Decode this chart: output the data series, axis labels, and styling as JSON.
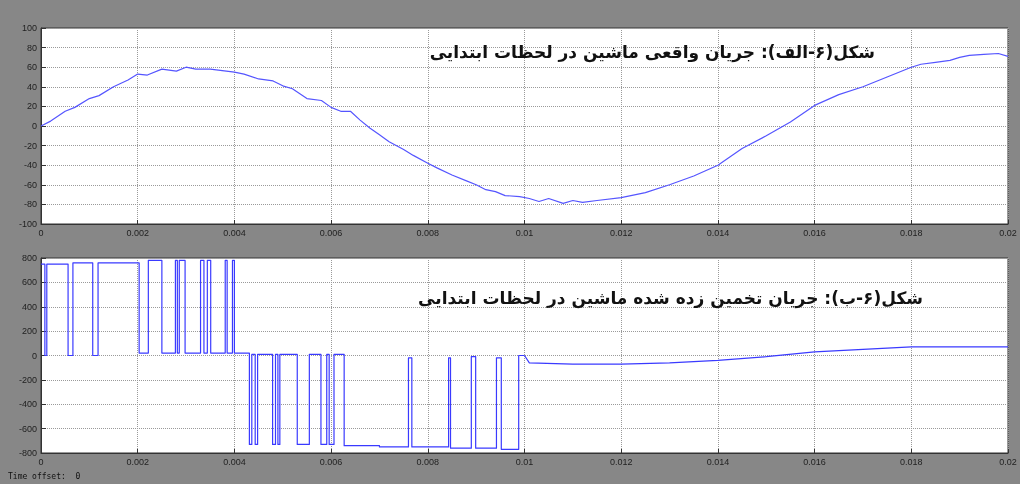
{
  "chart_data": [
    {
      "type": "line",
      "title": "شکل(۶-الف): جریان واقعی ماشین در لحظات ابتدایی",
      "color": "#5555ff",
      "x": [
        0,
        0.0002,
        0.0005,
        0.0007,
        0.001,
        0.0012,
        0.0015,
        0.0018,
        0.002,
        0.0022,
        0.0025,
        0.0028,
        0.003,
        0.0032,
        0.0035,
        0.004,
        0.0042,
        0.0045,
        0.0048,
        0.005,
        0.0052,
        0.0055,
        0.0058,
        0.006,
        0.0062,
        0.0064,
        0.0066,
        0.0068,
        0.007,
        0.0072,
        0.0075,
        0.0077,
        0.008,
        0.0082,
        0.0085,
        0.0088,
        0.009,
        0.0092,
        0.0094,
        0.0096,
        0.0099,
        0.0101,
        0.0103,
        0.0105,
        0.0108,
        0.011,
        0.0112,
        0.0115,
        0.012,
        0.0125,
        0.013,
        0.0135,
        0.014,
        0.0145,
        0.015,
        0.0155,
        0.016,
        0.0165,
        0.017,
        0.0175,
        0.018,
        0.0182,
        0.0185,
        0.0188,
        0.019,
        0.0192,
        0.0195,
        0.0198,
        0.02
      ],
      "values": [
        0,
        5,
        15,
        19,
        28,
        31,
        40,
        47,
        53,
        52,
        58,
        56,
        60,
        58,
        58,
        55,
        53,
        48,
        46,
        41,
        38,
        28,
        26,
        19,
        15,
        15,
        6,
        -2,
        -9,
        -16,
        -24,
        -30,
        -38,
        -43,
        -50,
        -56,
        -60,
        -65,
        -67,
        -71,
        -72,
        -74,
        -77,
        -74,
        -79,
        -76,
        -78,
        -76,
        -73,
        -68,
        -60,
        -51,
        -40,
        -23,
        -10,
        4,
        21,
        32,
        40,
        50,
        60,
        63,
        65,
        67,
        70,
        72,
        73,
        74,
        71
      ],
      "xlim": [
        0,
        0.02
      ],
      "xticks": [
        0,
        0.002,
        0.004,
        0.006,
        0.008,
        0.01,
        0.012,
        0.014,
        0.016,
        0.018,
        0.02
      ],
      "ylim": [
        -100,
        100
      ],
      "yticks": [
        -100,
        -80,
        -60,
        -40,
        -20,
        0,
        20,
        40,
        60,
        80,
        100
      ],
      "grid": true
    },
    {
      "type": "line",
      "title": "شکل(۶-ب): جریان تخمین زده شده ماشین در لحظات ابتدایی",
      "annotations": [
        "Time offset:  0"
      ],
      "series": [
        {
          "type": "step",
          "color": "#3a3aff",
          "x": [
            0,
            8e-05,
            0.00012,
            0.00056,
            0.00066,
            0.00107,
            0.00118,
            0.00203,
            0.00222,
            0.0025,
            0.00278,
            0.00282,
            0.00286,
            0.00298,
            0.0033,
            0.00337,
            0.00344,
            0.00351,
            0.00381,
            0.00385,
            0.00396,
            0.004,
            0.00431,
            0.00436,
            0.00443,
            0.00448,
            0.00479,
            0.00485,
            0.0049,
            0.00494,
            0.0053,
            0.00555,
            0.00579,
            0.00591,
            0.00596,
            0.00606,
            0.00627,
            0.007,
            0.0076,
            0.00767,
            0.00843,
            0.00847,
            0.0089,
            0.00899,
            0.00942,
            0.00952,
            0.00988,
            0.01
          ],
          "values": [
            750,
            0,
            750,
            0,
            760,
            0,
            760,
            20,
            780,
            20,
            780,
            20,
            780,
            20,
            780,
            20,
            780,
            20,
            780,
            20,
            780,
            20,
            -730,
            10,
            -730,
            10,
            -730,
            10,
            -730,
            10,
            -730,
            10,
            -730,
            10,
            -730,
            10,
            -740,
            -750,
            -20,
            -750,
            -20,
            -760,
            -10,
            -760,
            -20,
            -770,
            0,
            0
          ]
        },
        {
          "type": "line",
          "color": "#3a3aff",
          "x": [
            0.01,
            0.0101,
            0.011,
            0.012,
            0.013,
            0.014,
            0.015,
            0.016,
            0.017,
            0.018,
            0.019,
            0.02
          ],
          "values": [
            0,
            -60,
            -70,
            -70,
            -60,
            -40,
            -10,
            30,
            50,
            70,
            70,
            70
          ]
        }
      ],
      "xlim": [
        0,
        0.02
      ],
      "xticks": [
        0,
        0.002,
        0.004,
        0.006,
        0.008,
        0.01,
        0.012,
        0.014,
        0.016,
        0.018,
        0.02
      ],
      "ylim": [
        -800,
        800
      ],
      "yticks": [
        -800,
        -600,
        -400,
        -200,
        0,
        200,
        400,
        600,
        800
      ],
      "grid": true
    }
  ]
}
